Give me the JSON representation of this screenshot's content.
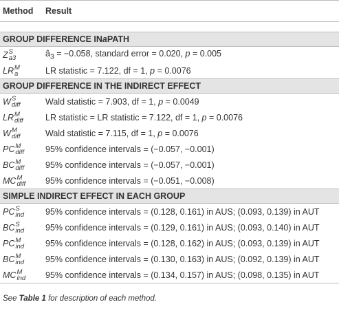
{
  "table": {
    "header": [
      "Method",
      "Result"
    ],
    "sections": [
      {
        "title": [
          {
            "text": "GROUP DIFFERENCE IN "
          },
          {
            "text": "a",
            "italic": true
          },
          {
            "text": " PATH"
          }
        ],
        "rows": [
          {
            "method": {
              "base": "Z",
              "sup": "S",
              "sub": "a3"
            },
            "result": [
              {
                "text": "â"
              },
              {
                "text": "3",
                "sub": true
              },
              {
                "text": " = −0.058, standard error = 0.020, "
              },
              {
                "text": "p",
                "italic": true
              },
              {
                "text": " = 0.005"
              }
            ]
          },
          {
            "method": {
              "base": "LR",
              "sup": "M",
              "sub": "a"
            },
            "result": [
              {
                "text": "LR statistic = 7.122, df = 1, "
              },
              {
                "text": "p",
                "italic": true
              },
              {
                "text": " = 0.0076"
              }
            ]
          }
        ]
      },
      {
        "title": [
          {
            "text": "GROUP DIFFERENCE IN THE INDIRECT EFFECT"
          }
        ],
        "rows": [
          {
            "method": {
              "base": "W",
              "sup": "S",
              "sub": "diff"
            },
            "result": [
              {
                "text": "Wald statistic = 7.903, df = 1, "
              },
              {
                "text": "p",
                "italic": true
              },
              {
                "text": " = 0.0049"
              }
            ]
          },
          {
            "method": {
              "base": "LR",
              "sup": "M",
              "sub": "diff"
            },
            "result": [
              {
                "text": "LR statistic = LR statistic = 7.122, df = 1, "
              },
              {
                "text": "p",
                "italic": true
              },
              {
                "text": " = 0.0076"
              }
            ]
          },
          {
            "method": {
              "base": "W",
              "sup": "M",
              "sub": "diff"
            },
            "result": [
              {
                "text": "Wald statistic = 7.115, df = 1, "
              },
              {
                "text": "p",
                "italic": true
              },
              {
                "text": " = 0.0076"
              }
            ]
          },
          {
            "method": {
              "base": "PC",
              "sup": "M",
              "sub": "diff"
            },
            "result": [
              {
                "text": "95% confidence intervals = (−0.057, −0.001)"
              }
            ]
          },
          {
            "method": {
              "base": "BC",
              "sup": "M",
              "sub": "diff"
            },
            "result": [
              {
                "text": "95% confidence intervals = (−0.057, −0.001)"
              }
            ]
          },
          {
            "method": {
              "base": "MC",
              "sup": "M",
              "sub": "diff"
            },
            "result": [
              {
                "text": "95% confidence intervals = (−0.051, −0.008)"
              }
            ]
          }
        ]
      },
      {
        "title": [
          {
            "text": "SIMPLE INDIRECT EFFECT IN EACH GROUP"
          }
        ],
        "rows": [
          {
            "method": {
              "base": "PC",
              "sup": "S",
              "sub": "ind"
            },
            "result": [
              {
                "text": "95% confidence intervals = (0.128, 0.161) in AUS; (0.093, 0.139) in AUT"
              }
            ]
          },
          {
            "method": {
              "base": "BC",
              "sup": "S",
              "sub": "ind"
            },
            "result": [
              {
                "text": "95% confidence intervals = (0.129, 0.161) in AUS; (0.093, 0.140) in AUT"
              }
            ]
          },
          {
            "method": {
              "base": "PC",
              "sup": "M",
              "sub": "ind"
            },
            "result": [
              {
                "text": "95% confidence intervals = (0.128, 0.162) in AUS; (0.093, 0.139) in AUT"
              }
            ]
          },
          {
            "method": {
              "base": "BC",
              "sup": "M",
              "sub": "ind"
            },
            "result": [
              {
                "text": "95% confidence intervals = (0.130, 0.163) in AUS; (0.092, 0.139) in AUT"
              }
            ]
          },
          {
            "method": {
              "base": "MC",
              "sup": "M",
              "sub": "ind"
            },
            "result": [
              {
                "text": "95% confidence intervals = (0.134, 0.157) in AUS; (0.098, 0.135) in AUT"
              }
            ]
          }
        ]
      }
    ],
    "footnote": [
      {
        "text": "See "
      },
      {
        "text": "Table 1",
        "bold": true
      },
      {
        "text": " for description of each method."
      }
    ]
  }
}
